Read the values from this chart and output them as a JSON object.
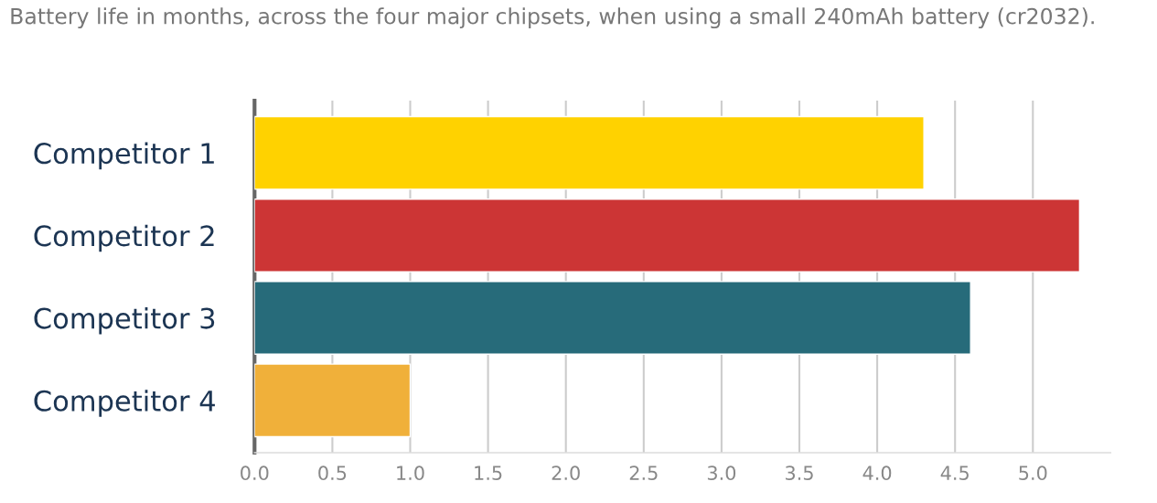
{
  "chart_data": {
    "type": "bar",
    "orientation": "horizontal",
    "subtitle": "Battery life in months, across the four major chipsets, when using a small 240mAh battery (cr2032).",
    "categories": [
      "Competitor 1",
      "Competitor 2",
      "Competitor 3",
      "Competitor 4"
    ],
    "values": [
      4.3,
      5.3,
      4.6,
      1.0
    ],
    "colors": [
      "#ffd200",
      "#cc3535",
      "#276b7a",
      "#f0b03a"
    ],
    "xlim": [
      0,
      5.5
    ],
    "xticks": [
      {
        "value": 0,
        "label": "0.0"
      },
      {
        "value": 0.5,
        "label": "0.5"
      },
      {
        "value": 1.0,
        "label": "1.0"
      },
      {
        "value": 1.5,
        "label": "1.5"
      },
      {
        "value": 2.0,
        "label": "2.0"
      },
      {
        "value": 2.5,
        "label": "2.5"
      },
      {
        "value": 3.0,
        "label": "3.0"
      },
      {
        "value": 3.5,
        "label": "3.5"
      },
      {
        "value": 4.0,
        "label": "4.0"
      },
      {
        "value": 4.5,
        "label": "4.5"
      },
      {
        "value": 5.0,
        "label": "5.0"
      }
    ],
    "grid": "x",
    "legend": false
  }
}
